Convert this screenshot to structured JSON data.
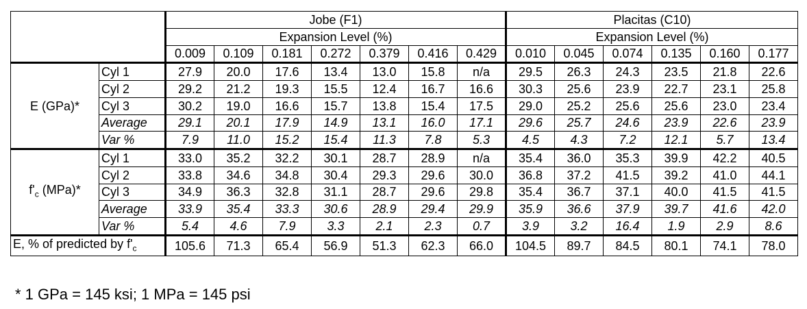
{
  "table": {
    "groups": [
      {
        "name": "Jobe (F1)",
        "subheader": "Expansion Level (%)",
        "levels": [
          "0.009",
          "0.109",
          "0.181",
          "0.272",
          "0.379",
          "0.416",
          "0.429"
        ]
      },
      {
        "name": "Placitas (C10)",
        "subheader": "Expansion Level (%)",
        "levels": [
          "0.010",
          "0.045",
          "0.074",
          "0.135",
          "0.160",
          "0.177"
        ]
      }
    ],
    "sections": [
      {
        "label": "E (GPa)*",
        "rows": [
          {
            "label": "Cyl 1",
            "italic": false,
            "values": [
              "27.9",
              "20.0",
              "17.6",
              "13.4",
              "13.0",
              "15.8",
              "n/a",
              "29.5",
              "26.3",
              "24.3",
              "23.5",
              "21.8",
              "22.6"
            ]
          },
          {
            "label": "Cyl 2",
            "italic": false,
            "values": [
              "29.2",
              "21.2",
              "19.3",
              "15.5",
              "12.4",
              "16.7",
              "16.6",
              "30.3",
              "25.6",
              "23.9",
              "22.7",
              "23.1",
              "25.8"
            ]
          },
          {
            "label": "Cyl 3",
            "italic": false,
            "values": [
              "30.2",
              "19.0",
              "16.6",
              "15.7",
              "13.8",
              "15.4",
              "17.5",
              "29.0",
              "25.2",
              "25.6",
              "25.6",
              "23.0",
              "23.4"
            ]
          },
          {
            "label": "Average",
            "italic": true,
            "values": [
              "29.1",
              "20.1",
              "17.9",
              "14.9",
              "13.1",
              "16.0",
              "17.1",
              "29.6",
              "25.7",
              "24.6",
              "23.9",
              "22.6",
              "23.9"
            ]
          },
          {
            "label": "Var %",
            "italic": true,
            "values": [
              "7.9",
              "11.0",
              "15.2",
              "15.4",
              "11.3",
              "7.8",
              "5.3",
              "4.5",
              "4.3",
              "7.2",
              "12.1",
              "5.7",
              "13.4"
            ]
          }
        ]
      },
      {
        "label_main": "f'",
        "label_sub": "c",
        "label_rest": " (MPa)*",
        "rows": [
          {
            "label": "Cyl 1",
            "italic": false,
            "values": [
              "33.0",
              "35.2",
              "32.2",
              "30.1",
              "28.7",
              "28.9",
              "n/a",
              "35.4",
              "36.0",
              "35.3",
              "39.9",
              "42.2",
              "40.5"
            ]
          },
          {
            "label": "Cyl 2",
            "italic": false,
            "values": [
              "33.8",
              "34.6",
              "34.8",
              "30.4",
              "29.3",
              "29.6",
              "30.0",
              "36.8",
              "37.2",
              "41.5",
              "39.2",
              "41.0",
              "44.1"
            ]
          },
          {
            "label": "Cyl 3",
            "italic": false,
            "values": [
              "34.9",
              "36.3",
              "32.8",
              "31.1",
              "28.7",
              "29.6",
              "29.8",
              "35.4",
              "36.7",
              "37.1",
              "40.0",
              "41.5",
              "41.5"
            ]
          },
          {
            "label": "Average",
            "italic": true,
            "values": [
              "33.9",
              "35.4",
              "33.3",
              "30.6",
              "28.9",
              "29.4",
              "29.9",
              "35.9",
              "36.6",
              "37.9",
              "39.7",
              "41.6",
              "42.0"
            ]
          },
          {
            "label": "Var %",
            "italic": true,
            "values": [
              "5.4",
              "4.6",
              "7.9",
              "3.3",
              "2.1",
              "2.3",
              "0.7",
              "3.9",
              "3.2",
              "16.4",
              "1.9",
              "2.9",
              "8.6"
            ]
          }
        ]
      }
    ],
    "footer_row": {
      "label_main": "E, % of predicted by f'",
      "label_sub": "c",
      "values": [
        "105.6",
        "71.3",
        "65.4",
        "56.9",
        "51.3",
        "62.3",
        "66.0",
        "104.5",
        "89.7",
        "84.5",
        "80.1",
        "74.1",
        "78.0"
      ]
    }
  },
  "footnote": "* 1 GPa = 145 ksi; 1 MPa = 145 psi"
}
